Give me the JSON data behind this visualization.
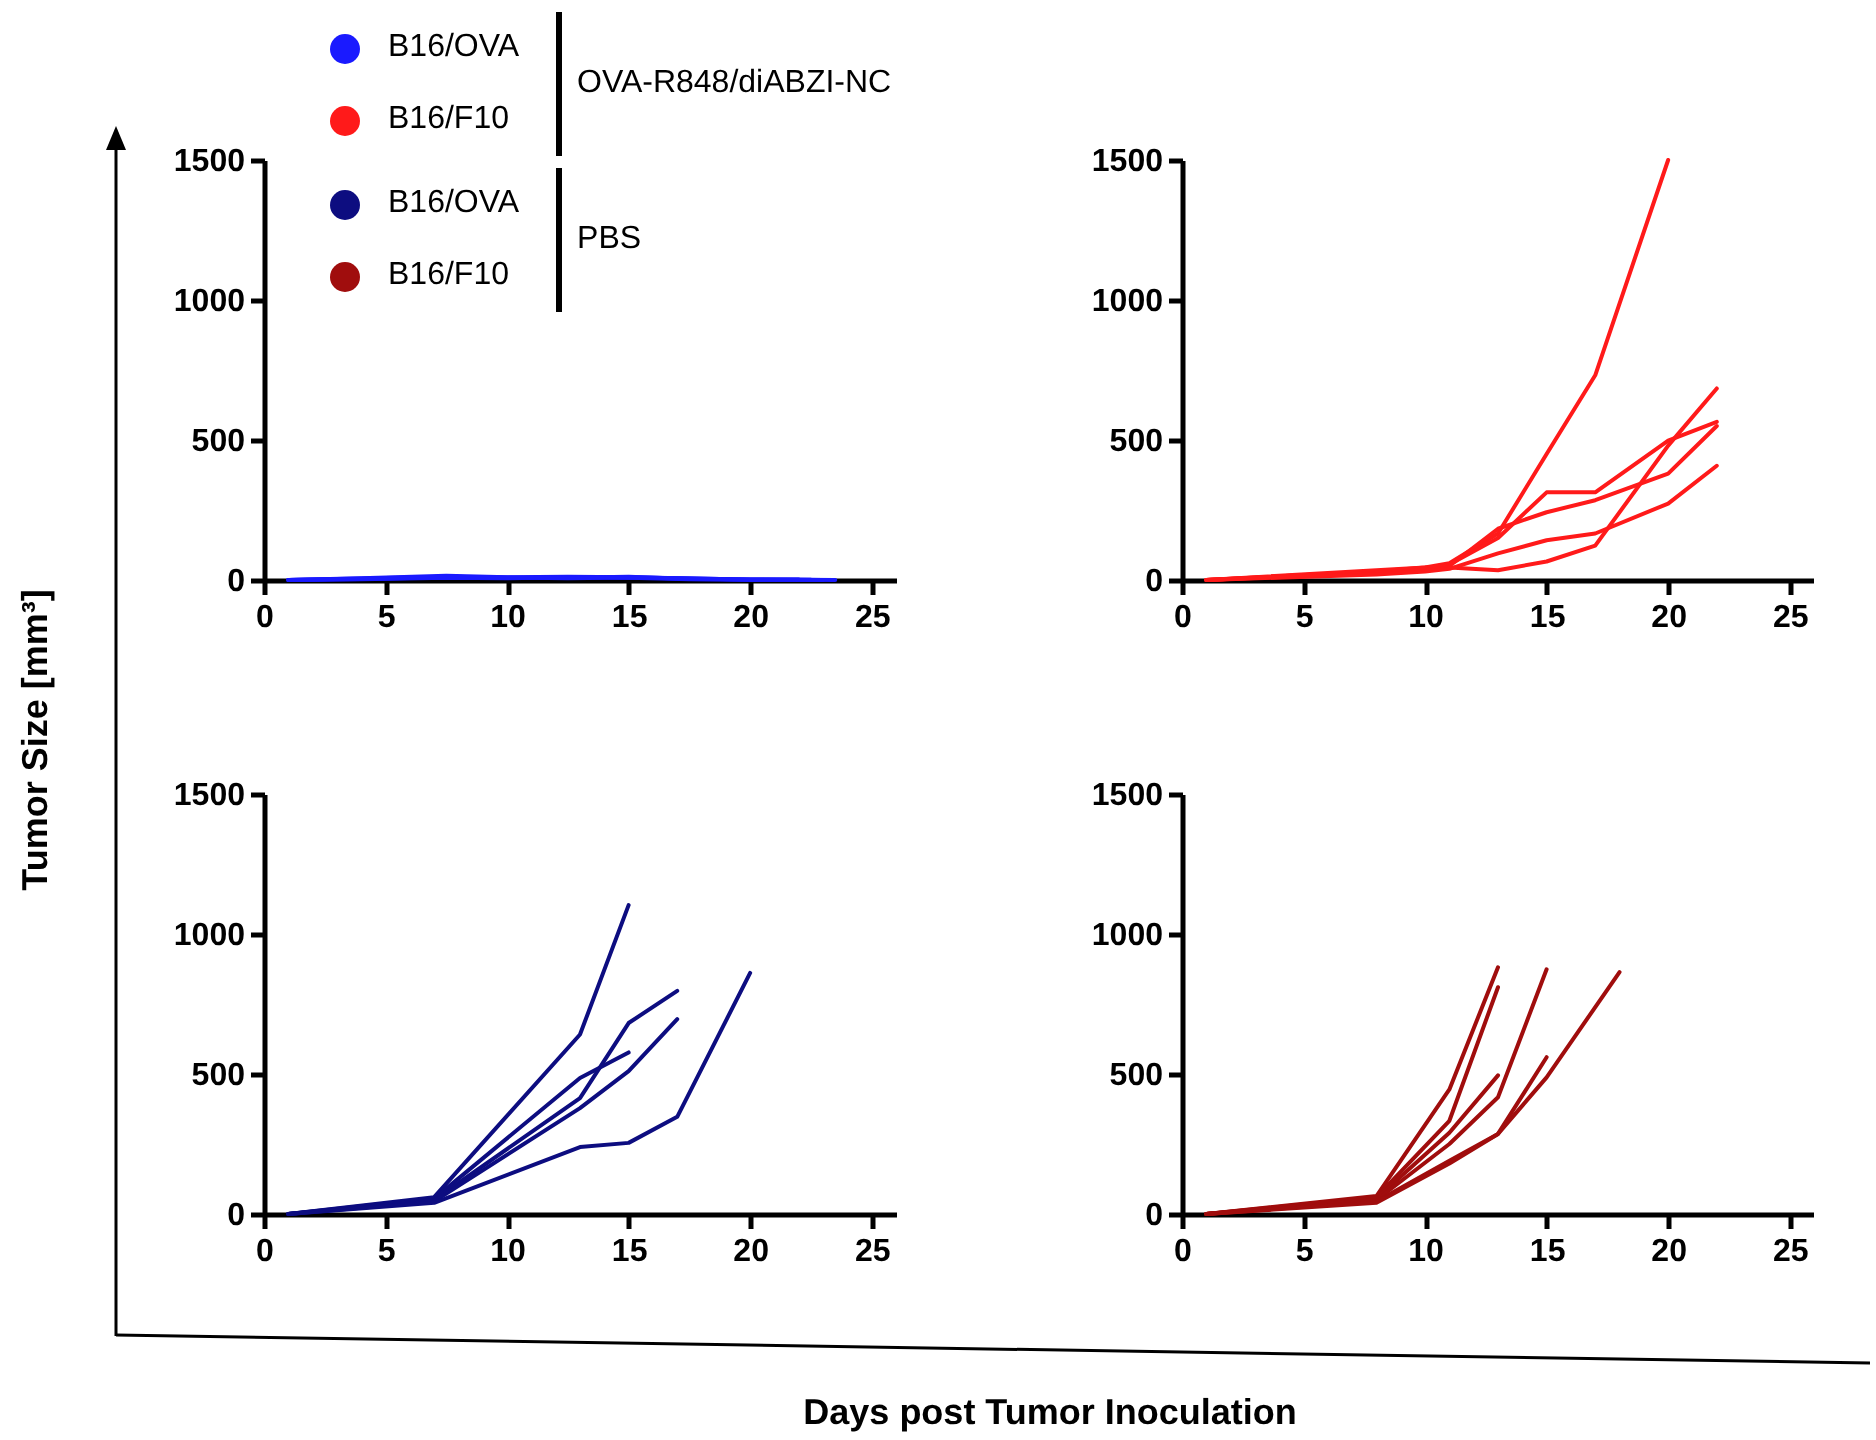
{
  "chart_data": [
    {
      "type": "line",
      "ylabel": "Tumor Size [mm³]",
      "annotations": [
        "OVA-R848/diABZI-NC"
      ],
      "xlim": [
        0,
        26
      ],
      "xticks": [
        0,
        5,
        10,
        15,
        20,
        25
      ],
      "ylim": [
        0,
        1500
      ],
      "yticks": [
        0,
        500,
        1000,
        1500
      ],
      "grid": false,
      "marker": "none",
      "line_style": "solid",
      "series": [
        {
          "name": "B16/OVA",
          "color": "#1a1aff",
          "x": [
            1,
            4,
            7.5,
            10,
            12.5,
            15,
            17.5,
            20,
            23
          ],
          "values": [
            0,
            6,
            15,
            10,
            12,
            10,
            5,
            2,
            0
          ]
        },
        {
          "color": "#1a1aff",
          "x": [
            1,
            4,
            7.5,
            10,
            12.5,
            15,
            17.5,
            20,
            22.5
          ],
          "values": [
            0,
            4,
            10,
            8,
            8,
            12,
            4,
            1,
            1
          ]
        },
        {
          "color": "#1a1aff",
          "x": [
            1,
            4,
            7.5,
            10,
            12.5,
            15,
            17.5,
            20,
            23.5
          ],
          "values": [
            0,
            3,
            8,
            6,
            10,
            8,
            3,
            2,
            0
          ]
        },
        {
          "color": "#1a1aff",
          "x": [
            1,
            4,
            7.5,
            10,
            12.5,
            15,
            17.5,
            20,
            22
          ],
          "values": [
            0,
            5,
            12,
            9,
            6,
            9,
            6,
            1,
            2
          ]
        }
      ]
    },
    {
      "type": "line",
      "xlim": [
        0,
        26
      ],
      "xticks": [
        0,
        5,
        10,
        15,
        20,
        25
      ],
      "ylim": [
        0,
        1500
      ],
      "yticks": [
        0,
        500,
        1000,
        1500
      ],
      "grid": false,
      "marker": "none",
      "line_style": "solid",
      "series": [
        {
          "name": "B16/F10",
          "color": "#ff1a1a",
          "x": [
            1,
            8,
            10,
            11,
            13,
            15,
            17,
            20
          ],
          "values": [
            0,
            30,
            45,
            60,
            166,
            450,
            731,
            1500
          ]
        },
        {
          "color": "#ff1a1a",
          "x": [
            1,
            8,
            10,
            11,
            13,
            15,
            17,
            20,
            22
          ],
          "values": [
            0,
            30,
            40,
            55,
            150,
            313,
            313,
            498,
            565
          ]
        },
        {
          "color": "#ff1a1a",
          "x": [
            1,
            8,
            10,
            11,
            13,
            15,
            17,
            20,
            22
          ],
          "values": [
            0,
            35,
            45,
            50,
            183,
            242,
            285,
            380,
            550
          ]
        },
        {
          "color": "#ff1a1a",
          "x": [
            1,
            8,
            10,
            11,
            13,
            15,
            17,
            20,
            22
          ],
          "values": [
            0,
            25,
            35,
            45,
            35,
            66,
            123,
            480,
            684
          ]
        },
        {
          "color": "#ff1a1a",
          "x": [
            1,
            8,
            10,
            11,
            13,
            15,
            17,
            20,
            22
          ],
          "values": [
            0,
            20,
            30,
            40,
            95,
            142,
            166,
            273,
            408
          ]
        }
      ]
    },
    {
      "type": "line",
      "annotations": [
        "PBS"
      ],
      "xlabel": "Days post Tumor Inoculation",
      "xlim": [
        0,
        26
      ],
      "xticks": [
        0,
        5,
        10,
        15,
        20,
        25
      ],
      "ylim": [
        0,
        1500
      ],
      "yticks": [
        0,
        500,
        1000,
        1500
      ],
      "grid": false,
      "marker": "none",
      "line_style": "solid",
      "series": [
        {
          "name": "B16/OVA",
          "color": "#0d0d80",
          "x": [
            1,
            7,
            13,
            15
          ],
          "values": [
            0,
            60,
            641,
            1103
          ]
        },
        {
          "color": "#0d0d80",
          "x": [
            1,
            7,
            13,
            15
          ],
          "values": [
            0,
            55,
            486,
            577
          ]
        },
        {
          "color": "#0d0d80",
          "x": [
            1,
            7,
            13,
            15,
            17
          ],
          "values": [
            0,
            50,
            414,
            682,
            797
          ]
        },
        {
          "color": "#0d0d80",
          "x": [
            1,
            7,
            13,
            15,
            17
          ],
          "values": [
            0,
            45,
            378,
            510,
            696
          ]
        },
        {
          "color": "#0d0d80",
          "x": [
            1,
            7,
            13,
            15,
            17,
            20
          ],
          "values": [
            0,
            40,
            239,
            254,
            347,
            861
          ]
        }
      ]
    },
    {
      "type": "line",
      "xlim": [
        0,
        26
      ],
      "xticks": [
        0,
        5,
        10,
        15,
        20,
        25
      ],
      "ylim": [
        0,
        1500
      ],
      "yticks": [
        0,
        500,
        1000,
        1500
      ],
      "grid": false,
      "marker": "none",
      "line_style": "solid",
      "series": [
        {
          "name": "B16/F10",
          "color": "#a00d0d",
          "x": [
            1,
            8,
            11,
            13
          ],
          "values": [
            0,
            64,
            445,
            881
          ]
        },
        {
          "color": "#a00d0d",
          "x": [
            1,
            8,
            11,
            13
          ],
          "values": [
            0,
            60,
            333,
            810
          ]
        },
        {
          "color": "#a00d0d",
          "x": [
            1,
            8,
            11,
            13
          ],
          "values": [
            0,
            55,
            290,
            495
          ]
        },
        {
          "color": "#a00d0d",
          "x": [
            1,
            8,
            11,
            13,
            15
          ],
          "values": [
            0,
            50,
            250,
            417,
            874
          ]
        },
        {
          "color": "#a00d0d",
          "x": [
            1,
            8,
            11,
            13,
            15,
            18
          ],
          "values": [
            0,
            45,
            190,
            286,
            488,
            864
          ]
        },
        {
          "color": "#a00d0d",
          "x": [
            1,
            8,
            11,
            13,
            15
          ],
          "values": [
            0,
            40,
            180,
            286,
            560
          ]
        }
      ]
    }
  ]
}
